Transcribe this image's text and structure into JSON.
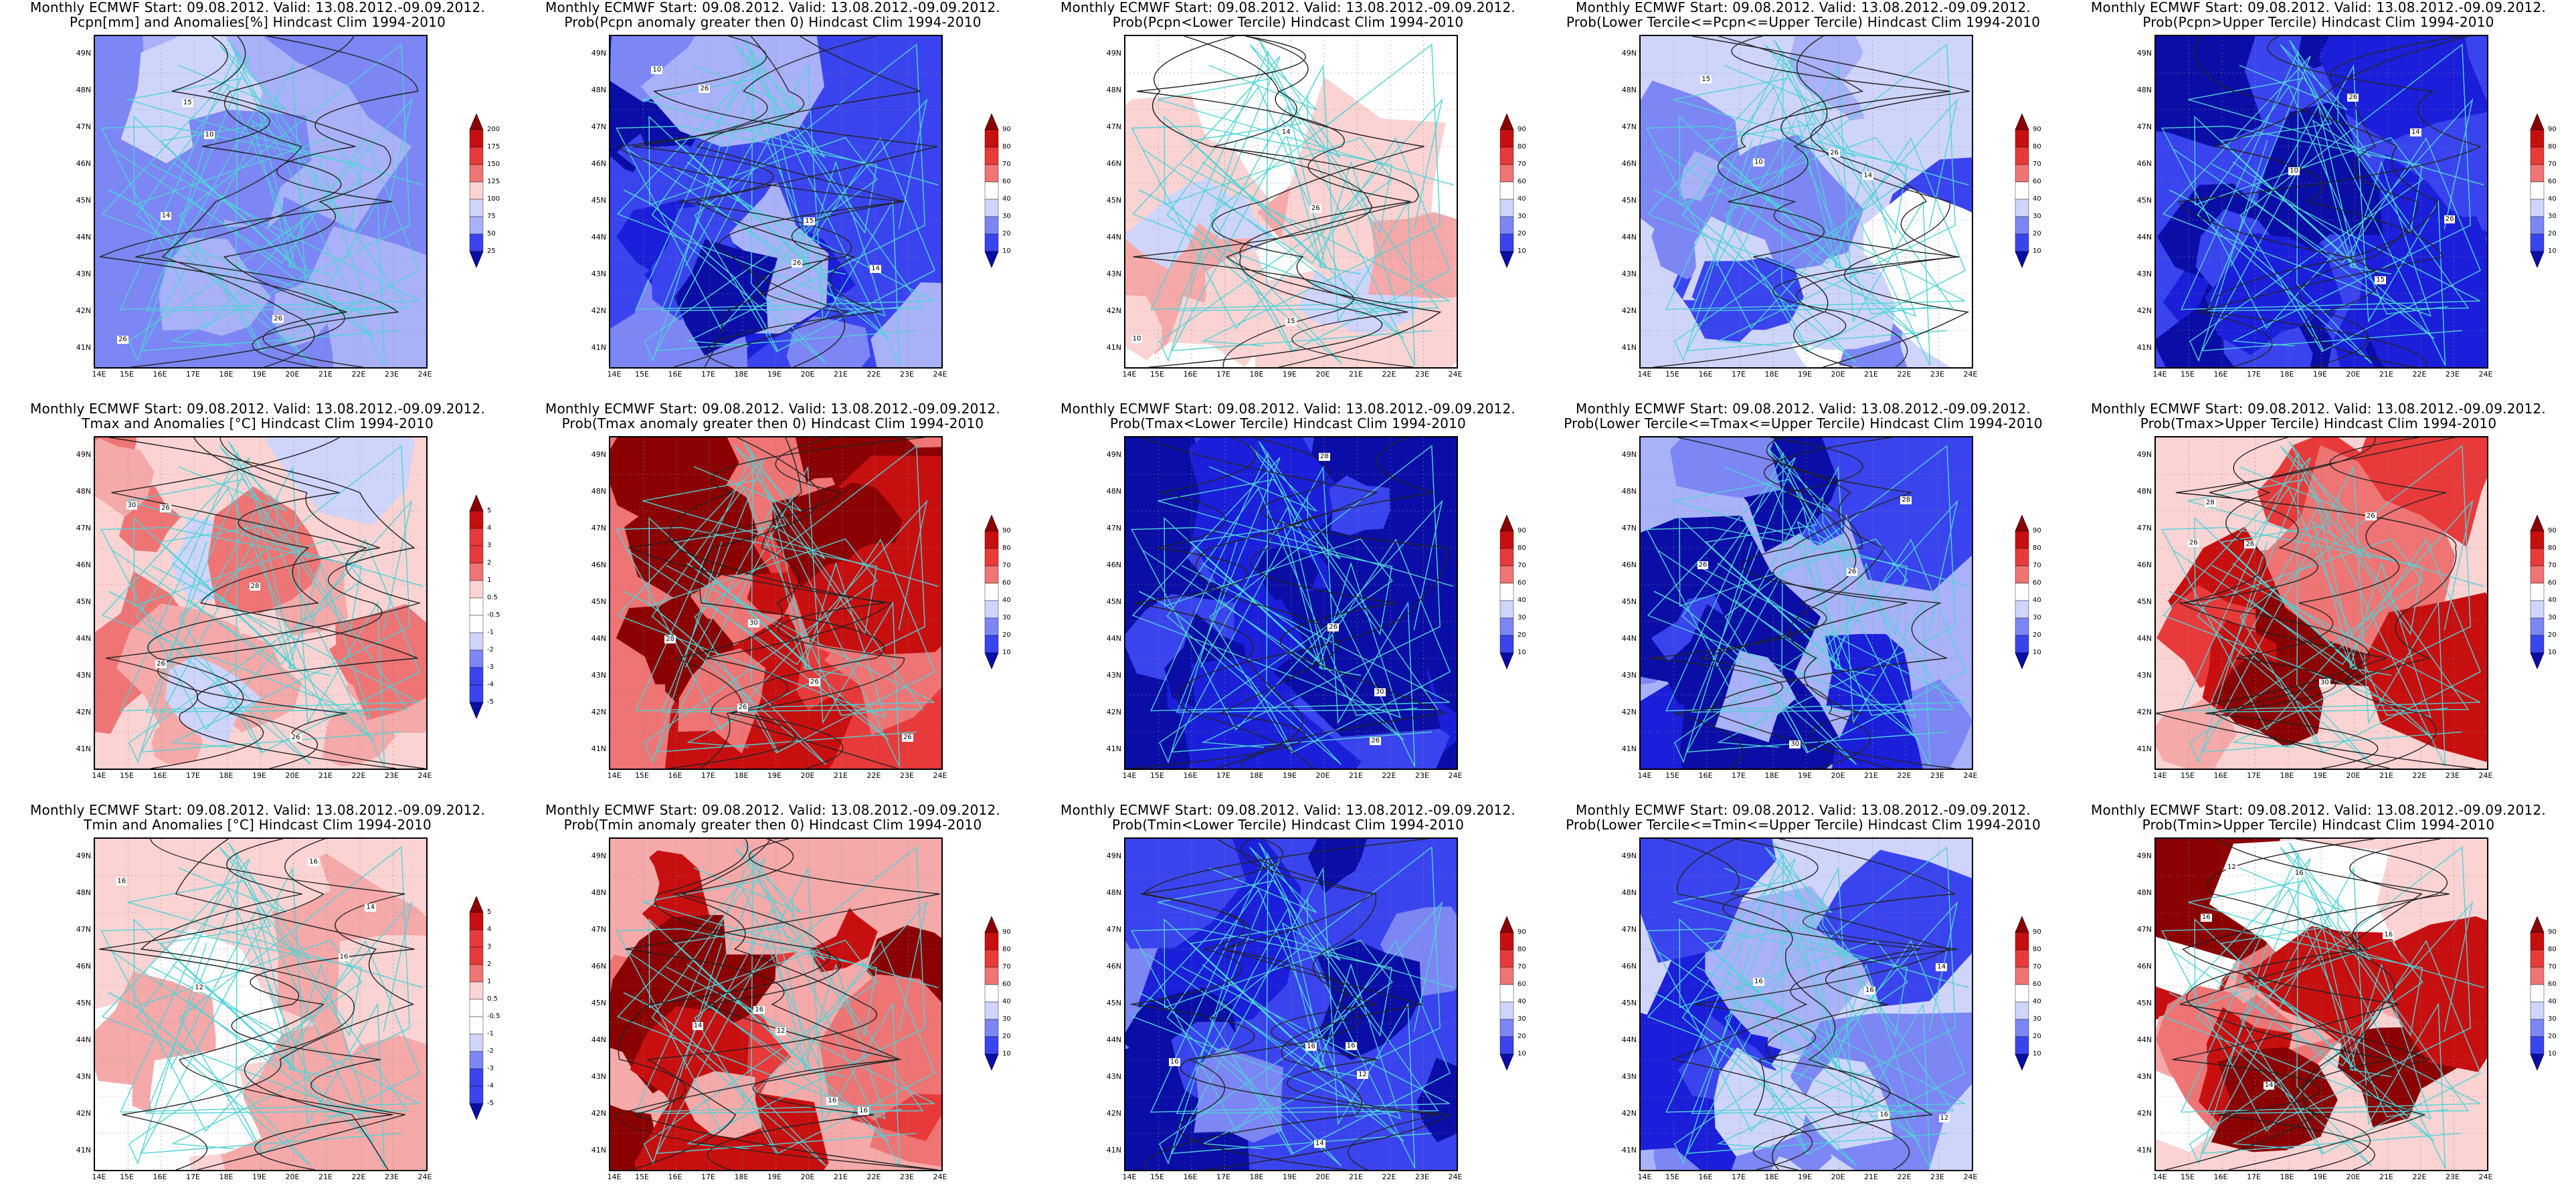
{
  "panels": [
    {
      "title1": "Monthly ECMWF Start: 09.08.2012. Valid: 13.08.2012.-09.09.2012.",
      "title2": "Pcpn[mm] and Anomalies[%] Hindcast Clim 1994-2010",
      "scheme": "blue_anom",
      "colorbar": [
        "200",
        "175",
        "150",
        "125",
        "100",
        "75",
        "50",
        "25"
      ],
      "contour_labels": [
        "26",
        "26",
        "14",
        "15",
        "10"
      ]
    },
    {
      "title1": "Monthly ECMWF Start: 09.08.2012. Valid: 13.08.2012.-09.09.2012.",
      "title2": "Prob(Pcpn anomaly greater then 0) Hindcast Clim 1994-2010",
      "scheme": "blue_prob",
      "colorbar": [
        "90",
        "80",
        "70",
        "60",
        "40",
        "30",
        "20",
        "10"
      ],
      "contour_labels": [
        "26",
        "26",
        "14",
        "15",
        "10"
      ]
    },
    {
      "title1": "Monthly ECMWF Start: 09.08.2012. Valid: 13.08.2012.-09.09.2012.",
      "title2": "Prob(Pcpn<Lower Tercile) Hindcast Clim 1994-2010",
      "scheme": "white_prob",
      "colorbar": [
        "90",
        "80",
        "70",
        "60",
        "40",
        "30",
        "20",
        "10"
      ],
      "contour_labels": [
        "26",
        "14",
        "15",
        "10"
      ]
    },
    {
      "title1": "Monthly ECMWF Start: 09.08.2012. Valid: 13.08.2012.-09.09.2012.",
      "title2": "Prob(Lower Tercile<=Pcpn<=Upper Tercile) Hindcast Clim 1994-2010",
      "scheme": "lightblue_prob",
      "colorbar": [
        "90",
        "80",
        "70",
        "60",
        "40",
        "30",
        "20",
        "10"
      ],
      "contour_labels": [
        "26",
        "14",
        "15",
        "10"
      ]
    },
    {
      "title1": "Monthly ECMWF Start: 09.08.2012. Valid: 13.08.2012.-09.09.2012.",
      "title2": "Prob(Pcpn>Upper Tercile) Hindcast Clim 1994-2010",
      "scheme": "deepblue_prob",
      "colorbar": [
        "90",
        "80",
        "70",
        "60",
        "40",
        "30",
        "20",
        "10"
      ],
      "contour_labels": [
        "26",
        "26",
        "14",
        "15",
        "10"
      ]
    },
    {
      "title1": "Monthly ECMWF Start: 09.08.2012. Valid: 13.08.2012.-09.09.2012.",
      "title2": "Tmax and Anomalies [°C] Hindcast Clim 1994-2010",
      "scheme": "red_anom",
      "colorbar": [
        "5",
        "4",
        "3",
        "2",
        "1",
        "0.5",
        "-0.5",
        "-1",
        "-2",
        "-3",
        "-4",
        "-5"
      ],
      "contour_labels": [
        "26",
        "26",
        "28",
        "30",
        "26"
      ]
    },
    {
      "title1": "Monthly ECMWF Start: 09.08.2012. Valid: 13.08.2012.-09.09.2012.",
      "title2": "Prob(Tmax anomaly greater then 0) Hindcast Clim 1994-2010",
      "scheme": "red_prob",
      "colorbar": [
        "90",
        "80",
        "70",
        "60",
        "40",
        "30",
        "20",
        "10"
      ],
      "contour_labels": [
        "26",
        "26",
        "28",
        "30",
        "26"
      ]
    },
    {
      "title1": "Monthly ECMWF Start: 09.08.2012. Valid: 13.08.2012.-09.09.2012.",
      "title2": "Prob(Tmax<Lower Tercile) Hindcast Clim 1994-2010",
      "scheme": "navy_prob",
      "colorbar": [
        "90",
        "80",
        "70",
        "60",
        "40",
        "30",
        "20",
        "10"
      ],
      "contour_labels": [
        "26",
        "28",
        "30",
        "26"
      ]
    },
    {
      "title1": "Monthly ECMWF Start: 09.08.2012. Valid: 13.08.2012.-09.09.2012.",
      "title2": "Prob(Lower Tercile<=Tmax<=Upper Tercile) Hindcast Clim 1994-2010",
      "scheme": "midblue_prob",
      "colorbar": [
        "90",
        "80",
        "70",
        "60",
        "40",
        "30",
        "20",
        "10"
      ],
      "contour_labels": [
        "26",
        "28",
        "30",
        "26"
      ]
    },
    {
      "title1": "Monthly ECMWF Start: 09.08.2012. Valid: 13.08.2012.-09.09.2012.",
      "title2": "Prob(Tmax>Upper Tercile) Hindcast Clim 1994-2010",
      "scheme": "red_prob2",
      "colorbar": [
        "90",
        "80",
        "70",
        "60",
        "40",
        "30",
        "20",
        "10"
      ],
      "contour_labels": [
        "26",
        "26",
        "28",
        "30",
        "26"
      ]
    },
    {
      "title1": "Monthly ECMWF Start: 09.08.2012. Valid: 13.08.2012.-09.09.2012.",
      "title2": "Tmin and Anomalies [°C] Hindcast Clim 1994-2010",
      "scheme": "pink_anom",
      "colorbar": [
        "5",
        "4",
        "3",
        "2",
        "1",
        "0.5",
        "-0.5",
        "-1",
        "-2",
        "-3",
        "-4",
        "-5"
      ],
      "contour_labels": [
        "16",
        "12",
        "16",
        "14",
        "16"
      ]
    },
    {
      "title1": "Monthly ECMWF Start: 09.08.2012. Valid: 13.08.2012.-09.09.2012.",
      "title2": "Prob(Tmin anomaly greater then 0) Hindcast Clim 1994-2010",
      "scheme": "red_prob3",
      "colorbar": [
        "90",
        "80",
        "70",
        "60",
        "40",
        "30",
        "20",
        "10"
      ],
      "contour_labels": [
        "16",
        "12",
        "16",
        "14",
        "16"
      ]
    },
    {
      "title1": "Monthly ECMWF Start: 09.08.2012. Valid: 13.08.2012.-09.09.2012.",
      "title2": "Prob(Tmin<Lower Tercile) Hindcast Clim 1994-2010",
      "scheme": "navy_prob2",
      "colorbar": [
        "90",
        "80",
        "70",
        "60",
        "40",
        "30",
        "20",
        "10"
      ],
      "contour_labels": [
        "16",
        "12",
        "16",
        "14",
        "16"
      ]
    },
    {
      "title1": "Monthly ECMWF Start: 09.08.2012. Valid: 13.08.2012.-09.09.2012.",
      "title2": "Prob(Lower Tercile<=Tmin<=Upper Tercile) Hindcast Clim 1994-2010",
      "scheme": "lightblue_prob2",
      "colorbar": [
        "90",
        "80",
        "70",
        "60",
        "40",
        "30",
        "20",
        "10"
      ],
      "contour_labels": [
        "16",
        "12",
        "16",
        "14",
        "16"
      ]
    },
    {
      "title1": "Monthly ECMWF Start: 09.08.2012. Valid: 13.08.2012.-09.09.2012.",
      "title2": "Prob(Tmin>Upper Tercile) Hindcast Clim 1994-2010",
      "scheme": "pinkred_prob",
      "colorbar": [
        "90",
        "80",
        "70",
        "60",
        "40",
        "30",
        "20",
        "10"
      ],
      "contour_labels": [
        "16",
        "12",
        "16",
        "14",
        "16"
      ]
    }
  ],
  "lat_labels": [
    "49N",
    "48N",
    "47N",
    "46N",
    "45N",
    "44N",
    "43N",
    "42N",
    "41N"
  ],
  "lon_labels": [
    "14E",
    "15E",
    "16E",
    "17E",
    "18E",
    "19E",
    "20E",
    "21E",
    "22E",
    "23E",
    "24E"
  ],
  "colors": {
    "border_line": "#4fd3d6",
    "contour_line": "#222222",
    "blues": [
      "#ffffff",
      "#cfd4fb",
      "#a9b1f8",
      "#7c86f5",
      "#3a44ee",
      "#1b1fd9",
      "#0a0ea6"
    ],
    "reds": [
      "#ffffff",
      "#fbd3d3",
      "#f6a9a9",
      "#ef7474",
      "#e83a3a",
      "#c80f0f",
      "#8b0000"
    ]
  }
}
